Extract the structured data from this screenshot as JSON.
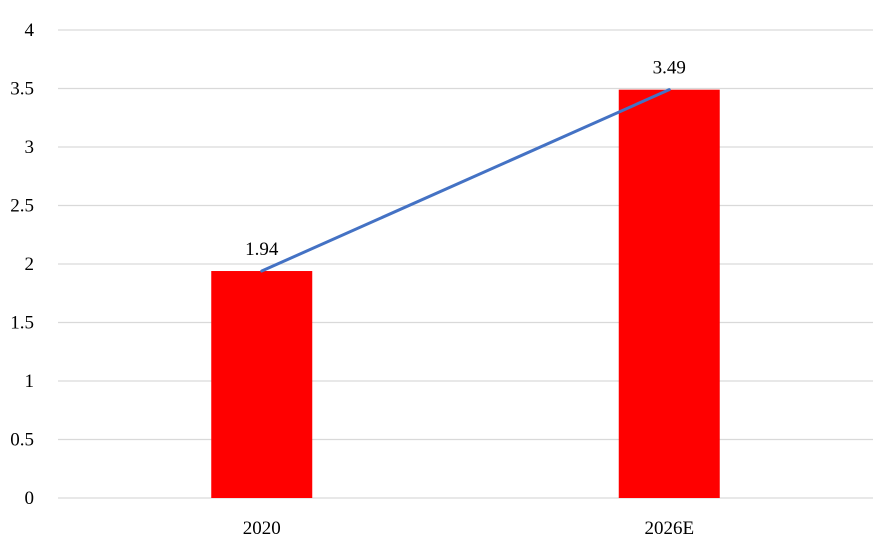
{
  "chart_data": {
    "type": "bar",
    "categories": [
      "2020",
      "2026E"
    ],
    "values": [
      1.94,
      3.49
    ],
    "data_labels": [
      "1.94",
      "3.49"
    ],
    "overlay": {
      "type": "line",
      "values": [
        1.94,
        3.49
      ]
    },
    "title": "",
    "xlabel": "",
    "ylabel": "",
    "ylim": [
      0,
      4
    ],
    "yticks": [
      0,
      0.5,
      1,
      1.5,
      2,
      2.5,
      3,
      3.5,
      4
    ],
    "ytick_labels": [
      "0",
      "0.5",
      "1",
      "1.5",
      "2",
      "2.5",
      "3",
      "3.5",
      "4"
    ],
    "grid": true,
    "legend": "none",
    "colors": {
      "bar": "#ff0000",
      "line": "#4472c4",
      "grid": "#d9d9d9",
      "text": "#000000"
    }
  }
}
